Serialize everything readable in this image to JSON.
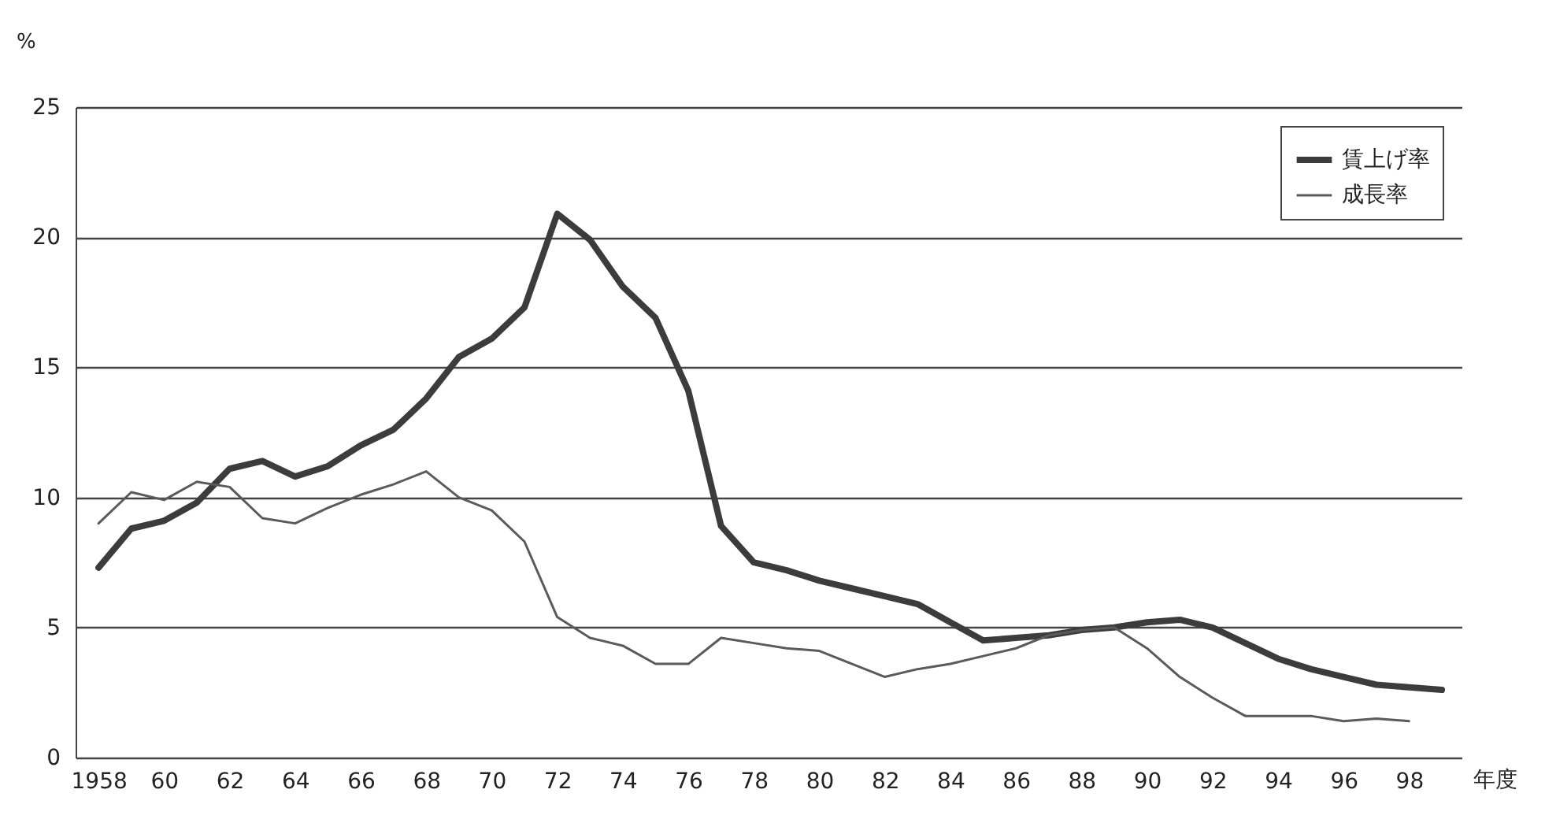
{
  "chart_data": {
    "type": "line",
    "xlabel": "年度",
    "ylabel": "%",
    "x": [
      1958,
      1959,
      1960,
      1961,
      1962,
      1963,
      1964,
      1965,
      1966,
      1967,
      1968,
      1969,
      1970,
      1971,
      1972,
      1973,
      1974,
      1975,
      1976,
      1977,
      1978,
      1979,
      1980,
      1981,
      1982,
      1983,
      1984,
      1985,
      1986,
      1987,
      1988,
      1989,
      1990,
      1991,
      1992,
      1993,
      1994,
      1995,
      1996,
      1997,
      1998,
      1999
    ],
    "series": [
      {
        "name": "賃上げ率",
        "color": "#3c3c3c",
        "values": [
          7.3,
          8.8,
          9.1,
          9.8,
          11.1,
          11.4,
          10.8,
          11.2,
          12.0,
          12.6,
          13.8,
          15.4,
          16.1,
          17.3,
          20.9,
          19.9,
          18.1,
          16.9,
          14.1,
          8.9,
          7.5,
          7.2,
          6.8,
          6.5,
          6.2,
          5.9,
          5.2,
          4.5,
          4.6,
          4.7,
          4.9,
          5.0,
          5.2,
          5.3,
          5.0,
          4.4,
          3.8,
          3.4,
          3.1,
          2.8,
          2.7,
          2.6
        ]
      },
      {
        "name": "成長率",
        "color": "#5a5a5a",
        "values": [
          9.0,
          10.2,
          9.9,
          10.6,
          10.4,
          9.2,
          9.0,
          9.6,
          10.1,
          10.5,
          11.0,
          10.0,
          9.5,
          8.3,
          5.4,
          4.6,
          4.3,
          3.6,
          3.6,
          4.6,
          4.4,
          4.2,
          4.1,
          3.6,
          3.1,
          3.4,
          3.6,
          3.9,
          4.2,
          4.7,
          4.9,
          5.0,
          4.2,
          3.1,
          2.3,
          1.6,
          1.6,
          1.6,
          1.4,
          1.5,
          1.4,
          null
        ]
      }
    ],
    "xlim": [
      1957.3,
      1999.6
    ],
    "xticks": [
      1958,
      {
        "value": 1960,
        "label": "60"
      },
      {
        "value": 1962,
        "label": "62"
      },
      {
        "value": 1964,
        "label": "64"
      },
      {
        "value": 1966,
        "label": "66"
      },
      {
        "value": 1968,
        "label": "68"
      },
      {
        "value": 1970,
        "label": "70"
      },
      {
        "value": 1972,
        "label": "72"
      },
      {
        "value": 1974,
        "label": "74"
      },
      {
        "value": 1976,
        "label": "76"
      },
      {
        "value": 1978,
        "label": "78"
      },
      {
        "value": 1980,
        "label": "80"
      },
      {
        "value": 1982,
        "label": "82"
      },
      {
        "value": 1984,
        "label": "84"
      },
      {
        "value": 1986,
        "label": "86"
      },
      {
        "value": 1988,
        "label": "88"
      },
      {
        "value": 1990,
        "label": "90"
      },
      {
        "value": 1992,
        "label": "92"
      },
      {
        "value": 1994,
        "label": "94"
      },
      {
        "value": 1996,
        "label": "96"
      },
      {
        "value": 1998,
        "label": "98"
      }
    ],
    "ylim": [
      0,
      25
    ],
    "yticks": [
      0,
      5,
      10,
      15,
      20,
      25
    ],
    "grid": "y",
    "legend": "top right",
    "marker": "none",
    "line_style": "solid"
  }
}
